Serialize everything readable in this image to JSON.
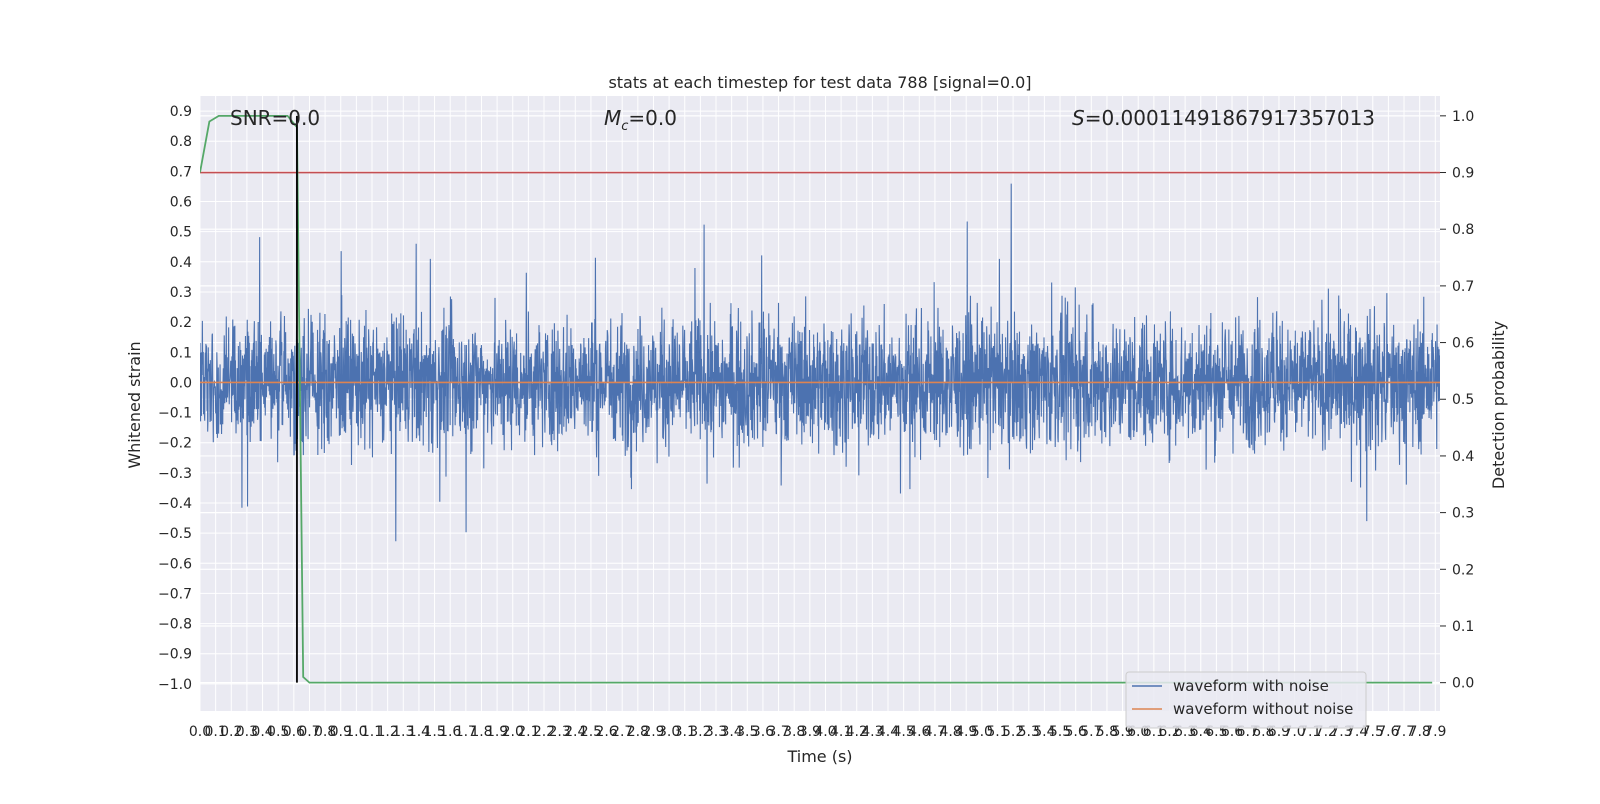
{
  "chart_data": {
    "type": "line",
    "title": "stats at each timestep for test data 788 [signal=0.0]",
    "xlabel": "Time (s)",
    "ylabel_left": "Whitened strain",
    "ylabel_right": "Detection probability",
    "xlim": [
      0.0,
      7.93
    ],
    "ylim_left": [
      -1.09,
      0.95
    ],
    "ylim_right": [
      -0.05,
      1.035
    ],
    "x_ticks": [
      "0.0",
      "0.1",
      "0.2",
      "0.3",
      "0.4",
      "0.5",
      "0.6",
      "0.7",
      "0.8",
      "0.9",
      "1.0",
      "1.1",
      "1.2",
      "1.3",
      "1.4",
      "1.5",
      "1.6",
      "1.7",
      "1.8",
      "1.9",
      "2.0",
      "2.1",
      "2.2",
      "2.3",
      "2.4",
      "2.5",
      "2.6",
      "2.7",
      "2.8",
      "2.9",
      "3.0",
      "3.1",
      "3.2",
      "3.3",
      "3.4",
      "3.5",
      "3.6",
      "3.7",
      "3.8",
      "3.9",
      "4.0",
      "4.1",
      "4.2",
      "4.3",
      "4.4",
      "4.5",
      "4.6",
      "4.7",
      "4.8",
      "4.9",
      "5.0",
      "5.1",
      "5.2",
      "5.3",
      "5.4",
      "5.5",
      "5.6",
      "5.7",
      "5.8",
      "5.9",
      "6.0",
      "6.1",
      "6.2",
      "6.3",
      "6.4",
      "6.5",
      "6.6",
      "6.7",
      "6.8",
      "6.9",
      "7.0",
      "7.1",
      "7.2",
      "7.3",
      "7.4",
      "7.5",
      "7.6",
      "7.7",
      "7.8",
      "7.9"
    ],
    "y_ticks_left": [
      "0.9",
      "0.8",
      "0.7",
      "0.6",
      "0.5",
      "0.4",
      "0.3",
      "0.2",
      "0.1",
      "0.0",
      "−0.1",
      "−0.2",
      "−0.3",
      "−0.4",
      "−0.5",
      "−0.6",
      "−0.7",
      "−0.8",
      "−0.9",
      "−1.0"
    ],
    "y_ticks_right": [
      "1.0",
      "0.9",
      "0.8",
      "0.7",
      "0.6",
      "0.5",
      "0.4",
      "0.3",
      "0.2",
      "0.1",
      "0.0"
    ],
    "annotations": {
      "snr": "SNR=0.0",
      "mc_symbol": "M",
      "mc_sub": "c",
      "mc_value": "=0.0",
      "s_symbol": "S",
      "s_value": "=0.00011491867917357013"
    },
    "threshold": 0.9,
    "trigger_time": 0.62,
    "series": [
      {
        "name": "waveform with noise",
        "axis": "left",
        "color": "#4c72b0",
        "envelope": "noise, roughly within ±0.3 with peaks between -1.0 and 0.86"
      },
      {
        "name": "waveform without noise",
        "axis": "left",
        "color": "#dd8452",
        "value": 0.0
      },
      {
        "axis": "right",
        "color": "#55a868",
        "x": [
          0.0,
          0.06,
          0.12,
          0.2,
          0.3,
          0.4,
          0.5,
          0.56,
          0.62,
          0.66,
          0.7,
          0.78,
          1.0,
          2.0,
          3.0,
          4.0,
          5.0,
          6.0,
          7.0,
          7.88
        ],
        "y": [
          0.9,
          0.99,
          1.0,
          1.0,
          1.0,
          1.0,
          1.0,
          1.0,
          0.98,
          0.01,
          0.0,
          0.0,
          0.0,
          0.0,
          0.0,
          0.0,
          0.0,
          0.0,
          0.0,
          0.0
        ]
      },
      {
        "axis": "right",
        "color": "#c44e52",
        "y_constant": 0.9
      }
    ],
    "legend": {
      "position": "lower-right",
      "entries": [
        "waveform with noise",
        "waveform without noise"
      ]
    },
    "grid": true
  }
}
